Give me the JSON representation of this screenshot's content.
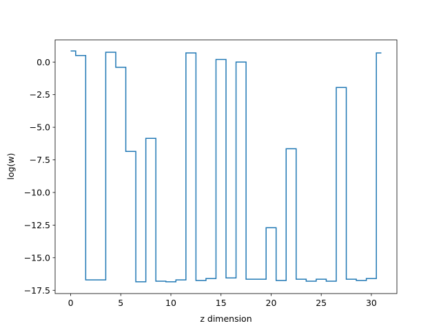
{
  "chart_data": {
    "type": "line",
    "drawstyle": "steps-mid",
    "title": "",
    "xlabel": "z dimension",
    "ylabel": "log(w)",
    "xlim": [
      -1.55,
      32.55
    ],
    "ylim": [
      -17.75,
      1.7
    ],
    "xticks": [
      0,
      5,
      10,
      15,
      20,
      25,
      30
    ],
    "xtick_labels": [
      "0",
      "5",
      "10",
      "15",
      "20",
      "25",
      "30"
    ],
    "yticks": [
      0.0,
      -2.5,
      -5.0,
      -7.5,
      -10.0,
      -12.5,
      -15.0,
      -17.5
    ],
    "ytick_labels": [
      "0.0",
      "−2.5",
      "−5.0",
      "−7.5",
      "−10.0",
      "−12.5",
      "−15.0",
      "−17.5"
    ],
    "grid": false,
    "legend": "none",
    "series": [
      {
        "color": "#1f77b4",
        "x": [
          0,
          1,
          2,
          3,
          4,
          5,
          6,
          7,
          8,
          9,
          10,
          11,
          12,
          13,
          14,
          15,
          16,
          17,
          18,
          19,
          20,
          21,
          22,
          23,
          24,
          25,
          26,
          27,
          28,
          29,
          30,
          31
        ],
        "values": [
          0.85,
          0.5,
          -16.7,
          -16.7,
          0.75,
          -0.4,
          -6.85,
          -16.85,
          -5.85,
          -16.8,
          -16.85,
          -16.7,
          0.7,
          -16.75,
          -16.6,
          0.2,
          -16.55,
          0.0,
          -16.65,
          -16.65,
          -12.7,
          -16.75,
          -6.65,
          -16.65,
          -16.8,
          -16.65,
          -16.8,
          -1.95,
          -16.65,
          -16.75,
          -16.6,
          0.7
        ]
      }
    ]
  }
}
